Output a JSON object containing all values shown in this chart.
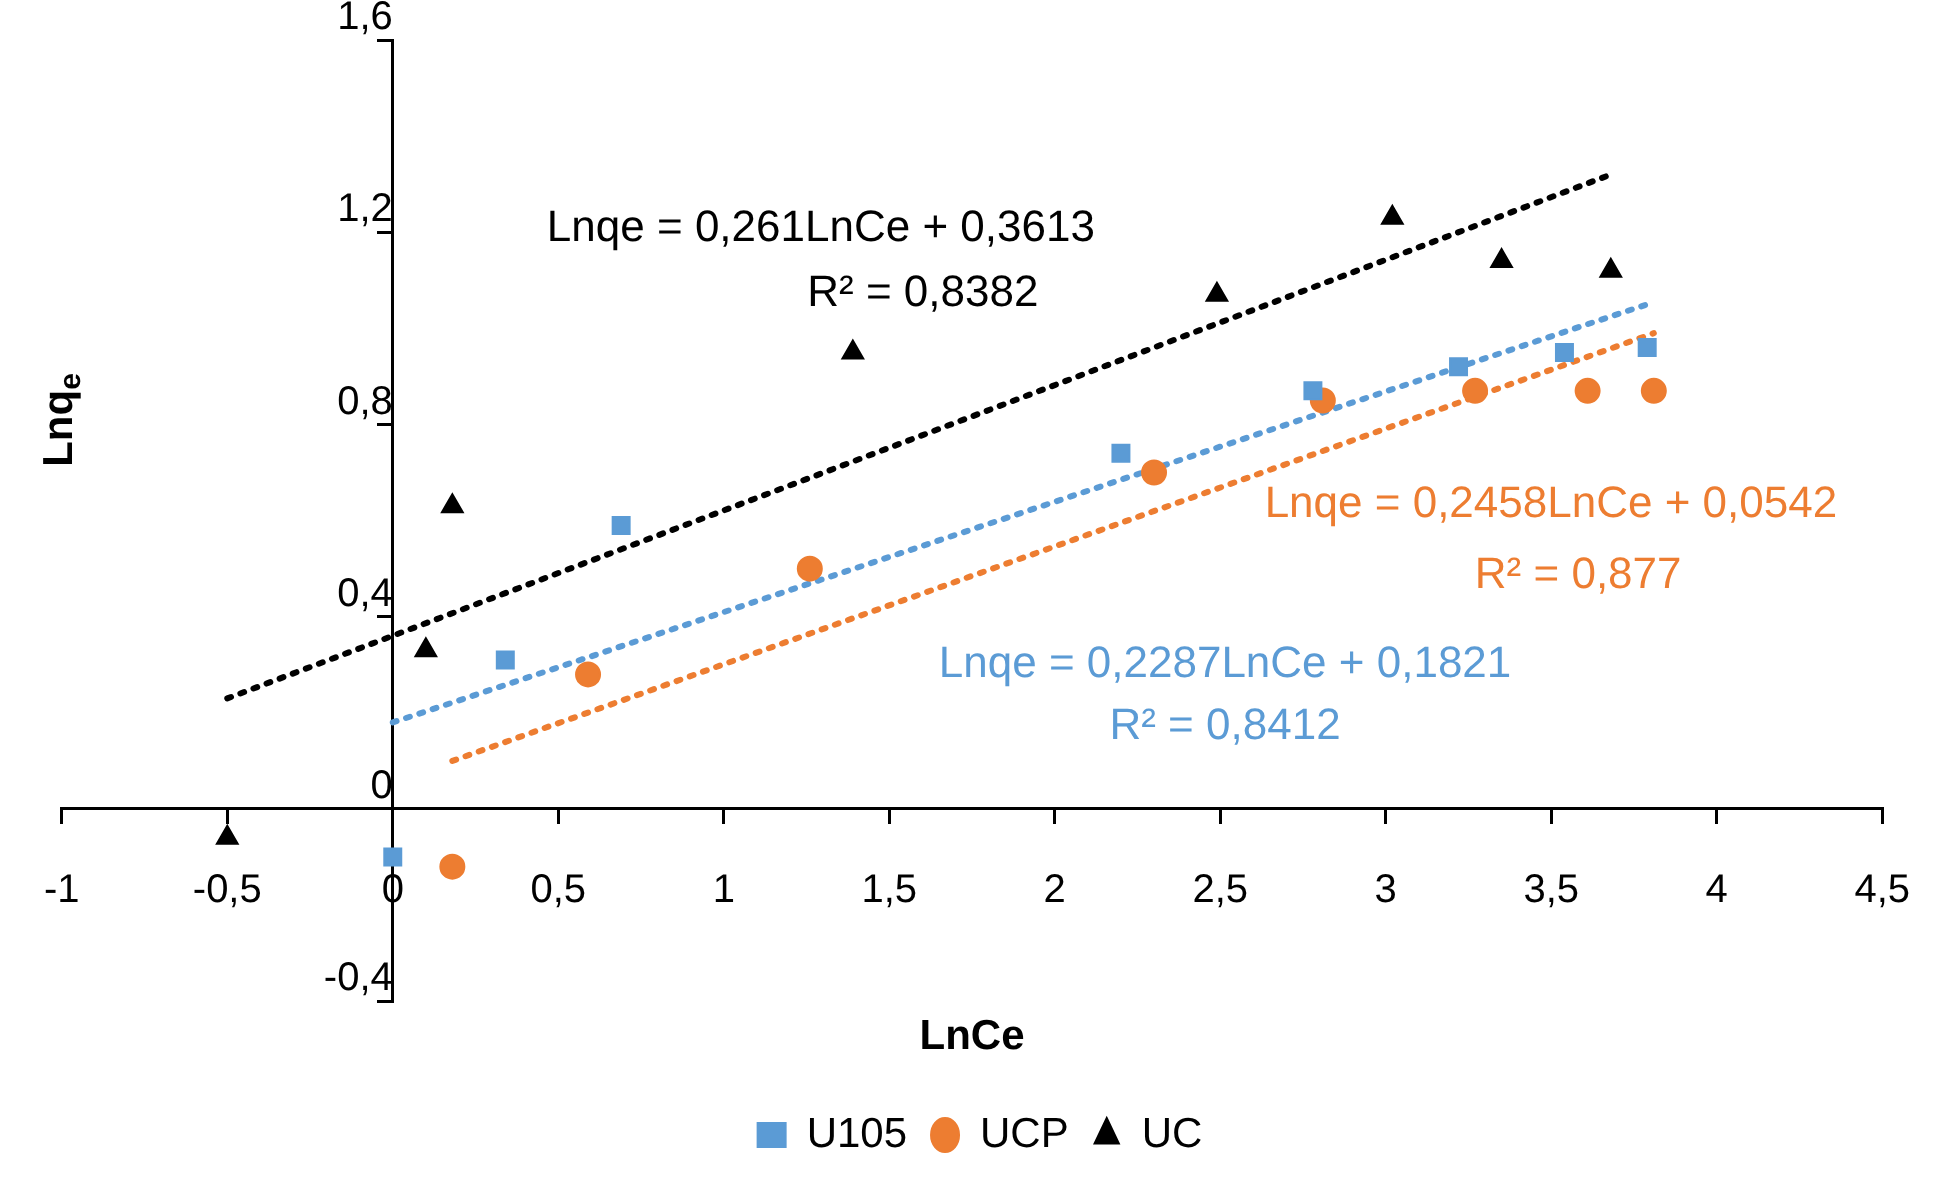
{
  "chart_data": {
    "type": "scatter",
    "xlabel": "LnCe",
    "ylabel": "Lnq$_{e}$",
    "xlim": [
      -1,
      4.5
    ],
    "ylim": [
      -0.4,
      1.6
    ],
    "xticks": [
      -1,
      {
        "value": -0.5,
        "label": "-0,5"
      },
      0,
      {
        "value": 0.5,
        "label": "0,5"
      },
      1,
      {
        "value": 1.5,
        "label": "1,5"
      },
      2,
      {
        "value": 2.5,
        "label": "2,5"
      },
      3,
      {
        "value": 3.5,
        "label": "3,5"
      },
      4,
      {
        "value": 4.5,
        "label": "4,5"
      }
    ],
    "yticks": [
      {
        "value": -0.4,
        "label": "-0,4"
      },
      0,
      {
        "value": 0.4,
        "label": "0,4"
      },
      {
        "value": 0.8,
        "label": "0,8"
      },
      {
        "value": 1.2,
        "label": "1,2"
      },
      {
        "value": 1.6,
        "label": "1,6"
      }
    ],
    "grid": false,
    "legend": "bottom",
    "series": [
      {
        "name": "U105",
        "color": "#5b9bd5",
        "marker": "square",
        "x": [
          0,
          0.34,
          0.69,
          2.2,
          2.78,
          3.22,
          3.54,
          3.79
        ],
        "values": [
          -0.1,
          0.31,
          0.59,
          0.74,
          0.87,
          0.92,
          0.95,
          0.96
        ]
      },
      {
        "name": "UCP",
        "color": "#ed7d31",
        "marker": "circle",
        "x": [
          0.18,
          0.59,
          1.26,
          2.3,
          2.81,
          3.27,
          3.61,
          3.81
        ],
        "values": [
          -0.12,
          0.28,
          0.5,
          0.7,
          0.85,
          0.87,
          0.87,
          0.87
        ]
      },
      {
        "name": "UC",
        "color": "#000000",
        "marker": "triangle",
        "x": [
          -0.5,
          0.1,
          0.18,
          1.39,
          2.49,
          3.02,
          3.35,
          3.68
        ],
        "values": [
          -0.06,
          0.33,
          0.63,
          0.95,
          1.07,
          1.23,
          1.14,
          1.12
        ]
      },
      {
        "type": "line",
        "color": "#000000",
        "line_style": "dotted",
        "marker": "none",
        "x": [
          -0.5,
          3.68
        ],
        "values": [
          0.23,
          1.32
        ]
      },
      {
        "type": "line",
        "color": "#ed7d31",
        "line_style": "dotted",
        "marker": "none",
        "x": [
          0.18,
          3.81
        ],
        "values": [
          0.1,
          0.99
        ]
      },
      {
        "type": "line",
        "color": "#5b9bd5",
        "line_style": "dotted",
        "marker": "none",
        "x": [
          0,
          3.79
        ],
        "values": [
          0.18,
          1.05
        ]
      }
    ],
    "annotations": [
      "Lnqe = 0,261LnCe + 0,3613",
      "R² = 0,8382",
      "Lnqe = 0,2458LnCe + 0,0542",
      "R² = 0,877",
      "Lnqe = 0,2287LnCe + 0,1821",
      "R² = 0,8412"
    ]
  }
}
